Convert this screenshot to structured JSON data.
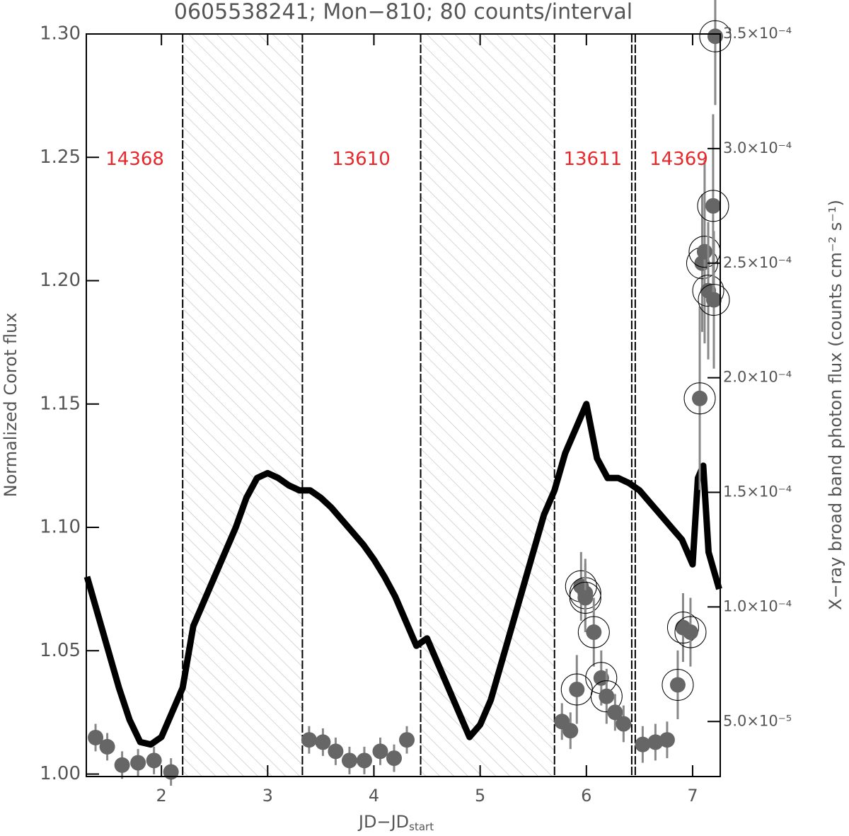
{
  "chart_data": {
    "type": "line",
    "title": "0605538241; Mon−810; 80 counts/interval",
    "x_label": "JD−JD",
    "x_label_sub": "start",
    "y_label": "Normalized Corot flux",
    "y2_label": "X−ray broad band photon flux (counts cm⁻² s⁻¹)",
    "xlim": [
      1.293,
      7.26
    ],
    "xticks": [
      2,
      3,
      4,
      5,
      6,
      7
    ],
    "ylim": [
      0.999,
      1.3
    ],
    "yticks": [
      {
        "value": 1.0,
        "label": "1.00"
      },
      1.05,
      {
        "value": 1.1,
        "label": "1.10"
      },
      1.15,
      {
        "value": 1.2,
        "label": "1.20"
      },
      1.25,
      {
        "value": 1.3,
        "label": "1.30"
      }
    ],
    "y2lim": [
      2.6e-05,
      0.00035
    ],
    "y2ticks": [
      {
        "value": 5e-05,
        "label": "5.0×10⁻⁵"
      },
      {
        "value": 0.0001,
        "label": "1.0×10⁻⁴"
      },
      {
        "value": 0.00015,
        "label": "1.5×10⁻⁴"
      },
      {
        "value": 0.0002,
        "label": "2.0×10⁻⁴"
      },
      {
        "value": 0.00025,
        "label": "2.5×10⁻⁴"
      },
      {
        "value": 0.0003,
        "label": "3.0×10⁻⁴"
      },
      {
        "value": 0.00035,
        "label": "3.5×10⁻⁴"
      }
    ],
    "boundaries": [
      2.2,
      3.327,
      4.44,
      5.7,
      6.427,
      6.46
    ],
    "shaded": [
      [
        2.2,
        3.327
      ],
      [
        4.44,
        5.7
      ]
    ],
    "annotations": [
      {
        "text": "14368",
        "x": 1.75,
        "y": 1.249
      },
      {
        "text": "13610",
        "x": 3.88,
        "y": 1.249
      },
      {
        "text": "13611",
        "x": 6.06,
        "y": 1.249
      },
      {
        "text": "14369",
        "x": 6.87,
        "y": 1.249
      }
    ],
    "series": [
      {
        "name": "Corot",
        "type": "line",
        "color": "#000000",
        "x": [
          1.3,
          1.4,
          1.5,
          1.6,
          1.7,
          1.8,
          1.9,
          2.0,
          2.1,
          2.2,
          2.3,
          2.4,
          2.5,
          2.6,
          2.7,
          2.8,
          2.9,
          3.0,
          3.1,
          3.2,
          3.3,
          3.4,
          3.5,
          3.6,
          3.7,
          3.8,
          3.9,
          4.0,
          4.1,
          4.2,
          4.3,
          4.4,
          4.5,
          4.6,
          4.7,
          4.8,
          4.9,
          5.0,
          5.1,
          5.2,
          5.3,
          5.4,
          5.5,
          5.6,
          5.7,
          5.8,
          5.9,
          6.0,
          6.1,
          6.2,
          6.3,
          6.4,
          6.5,
          6.6,
          6.7,
          6.8,
          6.9,
          7.0,
          7.05,
          7.1,
          7.15,
          7.25
        ],
        "values": [
          1.08,
          1.065,
          1.05,
          1.035,
          1.022,
          1.013,
          1.012,
          1.015,
          1.025,
          1.035,
          1.06,
          1.07,
          1.08,
          1.09,
          1.1,
          1.112,
          1.12,
          1.122,
          1.12,
          1.117,
          1.115,
          1.115,
          1.112,
          1.108,
          1.103,
          1.098,
          1.093,
          1.087,
          1.08,
          1.072,
          1.062,
          1.052,
          1.055,
          1.045,
          1.035,
          1.025,
          1.015,
          1.02,
          1.03,
          1.045,
          1.06,
          1.075,
          1.09,
          1.105,
          1.115,
          1.13,
          1.14,
          1.15,
          1.128,
          1.12,
          1.12,
          1.118,
          1.115,
          1.11,
          1.105,
          1.1,
          1.095,
          1.085,
          1.12,
          1.125,
          1.09,
          1.075
        ]
      },
      {
        "name": "X-ray",
        "type": "scatter",
        "axis": "y2",
        "color": "#666666",
        "x": [
          1.38,
          1.49,
          1.63,
          1.78,
          1.93,
          2.09,
          3.39,
          3.52,
          3.64,
          3.77,
          3.91,
          4.06,
          4.19,
          4.31,
          5.77,
          5.85,
          5.91,
          5.95,
          5.99,
          5.99,
          6.07,
          6.14,
          6.19,
          6.27,
          6.35,
          6.53,
          6.65,
          6.76,
          6.86,
          6.91,
          6.98,
          7.067,
          7.09,
          7.113,
          7.147,
          7.193,
          7.2,
          7.213
        ],
        "values": [
          4.3e-05,
          3.9e-05,
          3.1e-05,
          3.2e-05,
          3.3e-05,
          2.8e-05,
          4.2e-05,
          4.1e-05,
          3.7e-05,
          3.3e-05,
          3.3e-05,
          3.7e-05,
          3.4e-05,
          4.2e-05,
          5e-05,
          4.6e-05,
          6.4e-05,
          0.000109,
          0.000106,
          0.000104,
          8.9e-05,
          6.9e-05,
          6.1e-05,
          5.4e-05,
          4.9e-05,
          4e-05,
          4.1e-05,
          4.2e-05,
          6.6e-05,
          9.1e-05,
          8.9e-05,
          0.000191,
          0.00025,
          0.000255,
          0.000238,
          0.000275,
          0.000234,
          0.000349
        ],
        "errors": [
          6e-06,
          6e-06,
          6e-06,
          6e-06,
          6e-06,
          6e-06,
          6e-06,
          6e-06,
          6e-06,
          6e-06,
          6e-06,
          6e-06,
          6e-06,
          6e-06,
          8e-06,
          8e-06,
          1.5e-05,
          1.5e-05,
          1.5e-05,
          1.5e-05,
          1.5e-05,
          1.2e-05,
          1.2e-05,
          8e-06,
          8e-06,
          8e-06,
          8e-06,
          8e-06,
          1.5e-05,
          1.5e-05,
          1.5e-05,
          4e-05,
          3e-05,
          4e-05,
          3e-05,
          4e-05,
          3e-05,
          3e-05
        ],
        "circled": [
          false,
          false,
          false,
          false,
          false,
          false,
          false,
          false,
          false,
          false,
          false,
          false,
          false,
          false,
          false,
          false,
          true,
          true,
          true,
          true,
          true,
          true,
          true,
          false,
          false,
          false,
          false,
          false,
          true,
          true,
          true,
          true,
          true,
          true,
          true,
          true,
          true,
          true
        ]
      }
    ]
  }
}
